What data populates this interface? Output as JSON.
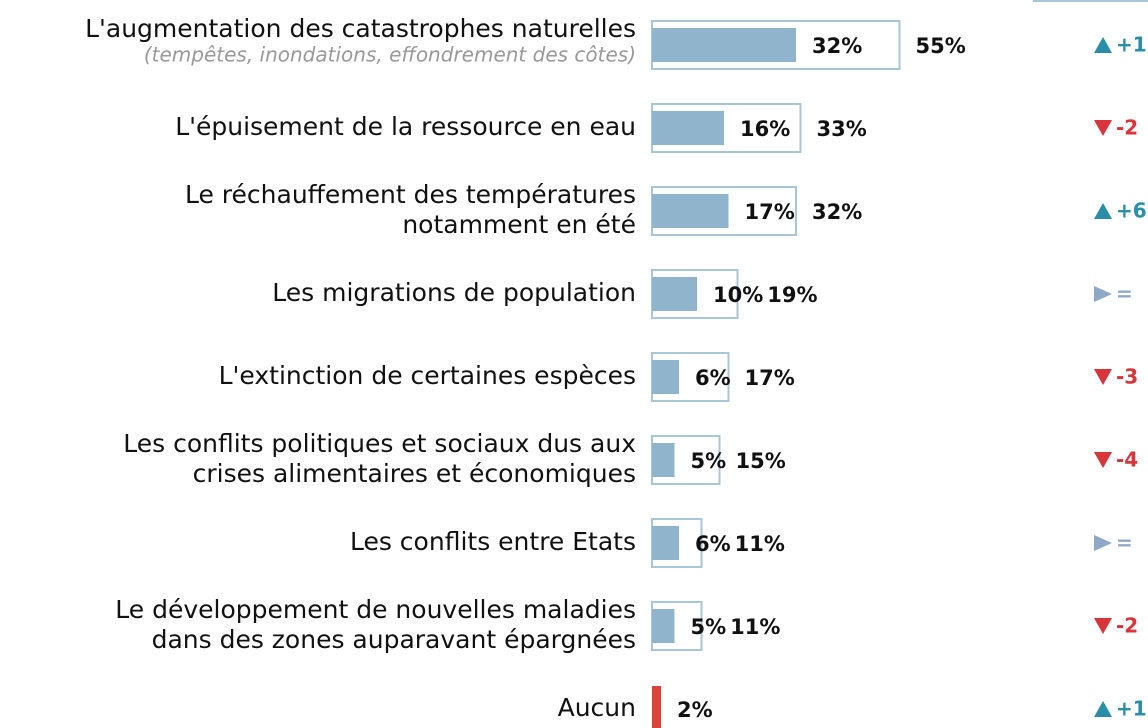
{
  "chart_data": {
    "type": "bar",
    "categories": [
      [
        "L'augmentation des catastrophes naturelles"
      ],
      [
        "L'épuisement de la ressource en eau"
      ],
      [
        "Le réchauffement des températures",
        "notamment en été"
      ],
      [
        "Les migrations de population"
      ],
      [
        "L'extinction de certaines espèces"
      ],
      [
        "Les conflits politiques et sociaux dus aux",
        "crises alimentaires et économiques"
      ],
      [
        "Les conflits entre Etats"
      ],
      [
        "Le développement de nouvelles maladies",
        "dans des zones auparavant épargnées"
      ],
      [
        "Aucun"
      ]
    ],
    "category_notes": [
      "(tempêtes, inondations, effondrement des côtes)",
      null,
      null,
      null,
      null,
      null,
      null,
      null,
      null
    ],
    "series": [
      {
        "color": "#8fb4cc",
        "values": [
          32,
          16,
          17,
          10,
          6,
          5,
          6,
          5,
          2
        ],
        "value_labels": [
          "32%",
          "16%",
          "17%",
          "10%",
          "6%",
          "5%",
          "6%",
          "5%",
          "2%"
        ],
        "highlight": {
          "index": 8,
          "color": "#d9443f"
        }
      },
      {
        "color": "#a9c6d9",
        "values": [
          55,
          33,
          32,
          19,
          17,
          15,
          11,
          11,
          null
        ],
        "value_labels": [
          "55%",
          "33%",
          "32%",
          "19%",
          "17%",
          "15%",
          "11%",
          "11%",
          null
        ]
      }
    ],
    "changes": [
      "+1",
      "-2",
      "+6",
      "=",
      "-3",
      "-4",
      "=",
      "-2",
      "+1"
    ],
    "change_colors": {
      "up": "#2a8fa6",
      "down": "#d9343a",
      "same": "#8fa8c8"
    },
    "xlim": [
      0,
      100
    ]
  }
}
